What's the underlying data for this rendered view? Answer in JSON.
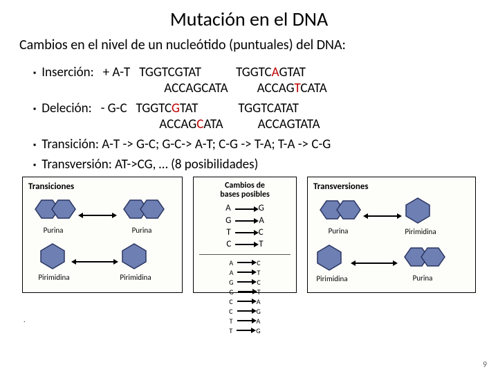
{
  "title": "Mutación en el DNA",
  "subtitle": "Cambios en el nivel de un nucleótido (puntuales) del DNA:",
  "bullet_marker": "▪",
  "insercion": {
    "label": "Inserción:   + A-T   ",
    "seq1a": "TGGTCGTAT",
    "seq1b": "ACCAGCATA",
    "seq2a_pre": "TGGTC",
    "seq2a_hi": "A",
    "seq2a_post": "GTAT",
    "seq2b_pre": "ACCAG",
    "seq2b_hi": "T",
    "seq2b_post": "CATA"
  },
  "delecion": {
    "label": "Deleción:   - G-C   ",
    "seq1a_pre": "TGGTC",
    "seq1a_hi": "G",
    "seq1a_post": "TAT",
    "seq1b_pre": "ACCAG",
    "seq1b_hi": "C",
    "seq1b_post": "ATA",
    "seq2a": "TGGTCATAT",
    "seq2b": "ACCAGTATA"
  },
  "transicion": "Transición:   A-T -> G-C; G-C-> A-T; C-G -> T-A; T-A -> C-G",
  "transversion": "Transversión:  AT->CG, … (8 posibilidades)",
  "diagram": {
    "transiciones_title": "Transiciones",
    "cambios_title_l1": "Cambios de",
    "cambios_title_l2": "bases posibles",
    "transversiones_title": "Transversiones",
    "purina": "Purina",
    "pirimidina": "Pirimidina",
    "purine_fill": "#6d7fb3",
    "purine_stroke": "#2a3560",
    "pyrim_fill": "#6d7fb3",
    "pyrim_stroke": "#2a3560",
    "mid_pairs_top": [
      [
        "A",
        "G"
      ],
      [
        "G",
        "A"
      ],
      [
        "T",
        "C"
      ],
      [
        "C",
        "T"
      ]
    ],
    "mid_pairs_bot": [
      [
        "A",
        "C"
      ],
      [
        "A",
        "T"
      ],
      [
        "G",
        "C"
      ],
      [
        "G",
        "T"
      ],
      [
        "C",
        "A"
      ],
      [
        "C",
        "G"
      ],
      [
        "T",
        "A"
      ],
      [
        "T",
        "G"
      ]
    ]
  },
  "page_number": "9"
}
